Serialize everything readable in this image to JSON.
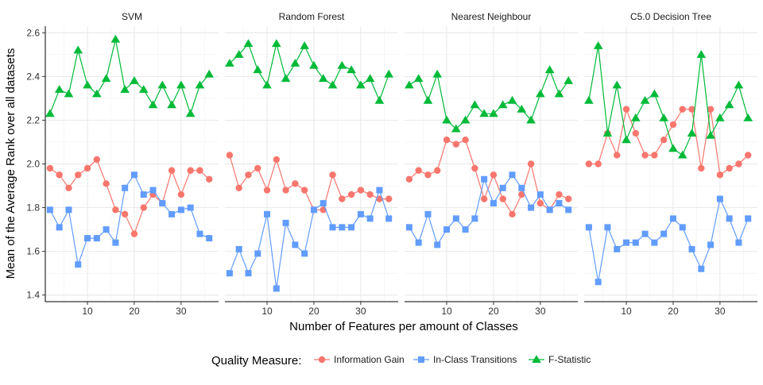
{
  "legend": {
    "title": "Quality Measure:",
    "placement": "bottom",
    "entries": [
      "Information Gain",
      "In-Class Transitions",
      "F-Statistic"
    ]
  },
  "axes": {
    "xlabel": "Number of Features per amount of Classes",
    "ylabel": "Mean of the Average Rank over all datasets"
  },
  "colors": {
    "info_gain": "#F8766D",
    "in_class": "#619CFF",
    "f_stat": "#00BA38"
  },
  "chart_data": {
    "type": "line",
    "facets": [
      "SVM",
      "Random Forest",
      "Nearest Neighbour",
      "C5.0 Decision Tree"
    ],
    "x": [
      2,
      4,
      6,
      8,
      10,
      12,
      14,
      16,
      18,
      20,
      22,
      24,
      26,
      28,
      30,
      32,
      34,
      36
    ],
    "xticks": [
      10,
      20,
      30
    ],
    "xlim": [
      1,
      38
    ],
    "yticks": [
      1.4,
      1.6,
      1.8,
      2.0,
      2.2,
      2.4,
      2.6
    ],
    "ylim": [
      1.37,
      2.63
    ],
    "grid": true,
    "series": [
      {
        "name": "Information Gain",
        "marker": "circle",
        "color": "#F8766D",
        "values": [
          [
            1.98,
            1.95,
            1.89,
            1.95,
            1.98,
            2.02,
            1.91,
            1.79,
            1.77,
            1.68,
            1.8,
            1.86,
            1.82,
            1.97,
            1.86,
            1.97,
            1.97,
            1.93
          ],
          [
            2.04,
            1.89,
            1.95,
            1.98,
            1.88,
            2.02,
            1.88,
            1.91,
            1.88,
            1.79,
            1.79,
            1.95,
            1.84,
            1.86,
            1.88,
            1.86,
            1.84,
            1.84
          ],
          [
            1.93,
            1.97,
            1.95,
            1.97,
            2.11,
            2.09,
            2.11,
            1.98,
            1.84,
            1.95,
            1.84,
            1.77,
            1.86,
            2.0,
            1.82,
            1.79,
            1.86,
            1.84
          ],
          [
            2.0,
            2.0,
            2.14,
            2.04,
            2.25,
            2.14,
            2.04,
            2.04,
            2.11,
            2.18,
            2.25,
            2.25,
            1.98,
            2.25,
            1.95,
            1.98,
            2.0,
            2.04
          ]
        ]
      },
      {
        "name": "In-Class Transitions",
        "marker": "square",
        "color": "#619CFF",
        "values": [
          [
            1.79,
            1.71,
            1.79,
            1.54,
            1.66,
            1.66,
            1.7,
            1.64,
            1.89,
            1.95,
            1.86,
            1.88,
            1.82,
            1.77,
            1.79,
            1.8,
            1.68,
            1.66
          ],
          [
            1.5,
            1.61,
            1.5,
            1.59,
            1.77,
            1.43,
            1.73,
            1.63,
            1.59,
            1.79,
            1.82,
            1.71,
            1.71,
            1.71,
            1.77,
            1.75,
            1.88,
            1.75
          ],
          [
            1.71,
            1.64,
            1.77,
            1.63,
            1.7,
            1.75,
            1.7,
            1.75,
            1.93,
            1.82,
            1.89,
            1.95,
            1.89,
            1.8,
            1.86,
            1.79,
            1.82,
            1.79
          ],
          [
            1.71,
            1.46,
            1.71,
            1.61,
            1.64,
            1.64,
            1.68,
            1.64,
            1.68,
            1.75,
            1.71,
            1.61,
            1.52,
            1.63,
            1.84,
            1.75,
            1.64,
            1.75
          ]
        ]
      },
      {
        "name": "F-Statistic",
        "marker": "triangle",
        "color": "#00BA38",
        "values": [
          [
            2.23,
            2.34,
            2.32,
            2.52,
            2.36,
            2.32,
            2.39,
            2.57,
            2.34,
            2.38,
            2.34,
            2.27,
            2.36,
            2.27,
            2.36,
            2.23,
            2.36,
            2.41
          ],
          [
            2.46,
            2.5,
            2.55,
            2.43,
            2.36,
            2.55,
            2.39,
            2.46,
            2.54,
            2.45,
            2.39,
            2.36,
            2.45,
            2.43,
            2.36,
            2.39,
            2.29,
            2.41
          ],
          [
            2.36,
            2.39,
            2.29,
            2.41,
            2.2,
            2.16,
            2.2,
            2.27,
            2.23,
            2.23,
            2.27,
            2.29,
            2.25,
            2.2,
            2.32,
            2.43,
            2.32,
            2.38
          ],
          [
            2.29,
            2.54,
            2.14,
            2.36,
            2.11,
            2.21,
            2.29,
            2.32,
            2.21,
            2.07,
            2.04,
            2.14,
            2.5,
            2.13,
            2.21,
            2.27,
            2.36,
            2.21
          ]
        ]
      }
    ]
  }
}
